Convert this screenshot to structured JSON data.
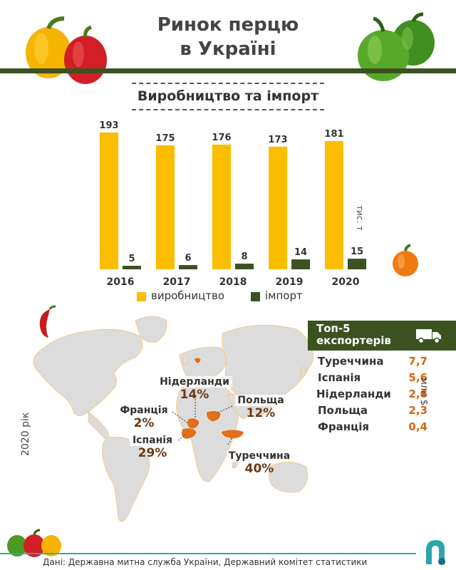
{
  "header": {
    "title_line1": "Ринок перцю",
    "title_line2": "в Україні"
  },
  "chart_data": {
    "type": "bar",
    "title": "Виробництво та імпорт",
    "ylabel": "тис. т",
    "categories": [
      "2016",
      "2017",
      "2018",
      "2019",
      "2020"
    ],
    "series": [
      {
        "name": "виробництво",
        "values": [
          193,
          175,
          176,
          173,
          181
        ],
        "color": "#fbbd00"
      },
      {
        "name": "імпорт",
        "values": [
          5,
          6,
          8,
          14,
          15
        ],
        "color": "#3a5220"
      }
    ],
    "ylim": [
      0,
      200
    ],
    "grid": false,
    "legend": "bottom"
  },
  "map": {
    "year_label": "2020 рік",
    "countries": [
      {
        "name": "Нідерланди",
        "share": "14%"
      },
      {
        "name": "Польща",
        "share": "12%"
      },
      {
        "name": "Франція",
        "share": "2%"
      },
      {
        "name": "Іспанія",
        "share": "29%"
      },
      {
        "name": "Туреччина",
        "share": "40%"
      }
    ],
    "highlight_color": "#e0701c"
  },
  "exporters": {
    "title_line1": "Топ-5",
    "title_line2": "експортерів",
    "unit": "млн $",
    "icon": "truck-icon",
    "rows": [
      {
        "name": "Туреччина",
        "value": "7,7"
      },
      {
        "name": "Іспанія",
        "value": "5,6"
      },
      {
        "name": "Нідерланди",
        "value": "2,6"
      },
      {
        "name": "Польща",
        "value": "2,3"
      },
      {
        "name": "Франція",
        "value": "0,4"
      }
    ]
  },
  "footer": {
    "source": "Дані: Державна митна служба України, Державний комітет статистики"
  }
}
